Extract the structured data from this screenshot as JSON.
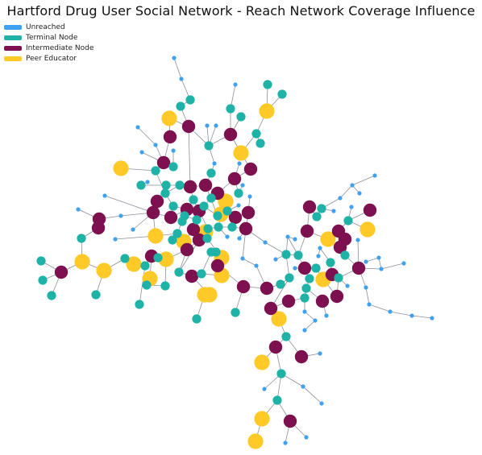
{
  "title": "Hartford Drug User Social Network - Reach Network Coverage Influence",
  "legend": [
    {
      "key": "unreached",
      "label": "Unreached",
      "color": "#3ea1f2"
    },
    {
      "key": "terminal",
      "label": "Terminal Node",
      "color": "#1eb3a6"
    },
    {
      "key": "intermediate",
      "label": "Intermediate Node",
      "color": "#7d1150"
    },
    {
      "key": "peer",
      "label": "Peer Educator",
      "color": "#ffc928"
    }
  ],
  "edge_color": "#8a8f99"
}
